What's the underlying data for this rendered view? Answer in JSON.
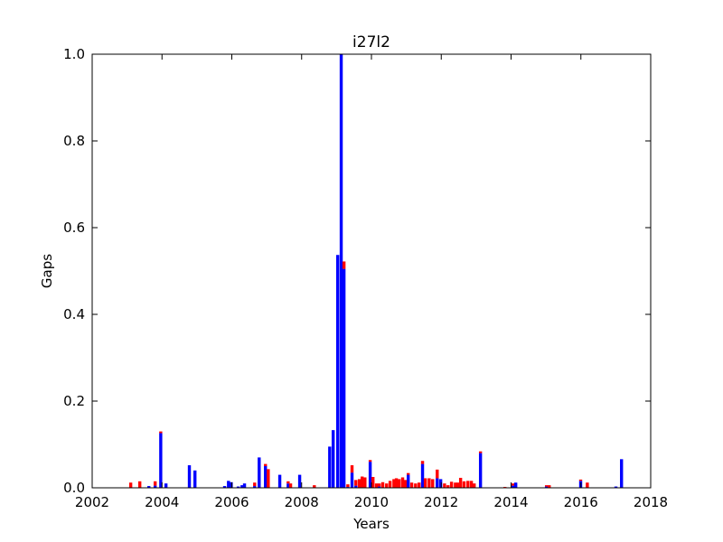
{
  "chart_data": {
    "type": "stacked_bar",
    "title": "i27l2",
    "xlabel": "Years",
    "ylabel": "Gaps",
    "x": [
      2003.06,
      2003.32,
      2003.58,
      2003.76,
      2003.92,
      2004.07,
      2004.74,
      2004.9,
      2005.75,
      2005.86,
      2005.94,
      2006.14,
      2006.25,
      2006.32,
      2006.61,
      2006.74,
      2006.92,
      2007.0,
      2007.33,
      2007.57,
      2007.64,
      2007.9,
      2008.32,
      2008.76,
      2008.86,
      2008.99,
      2009.09,
      2009.17,
      2009.28,
      2009.4,
      2009.51,
      2009.61,
      2009.69,
      2009.77,
      2009.92,
      2010.0,
      2010.1,
      2010.18,
      2010.28,
      2010.39,
      2010.49,
      2010.6,
      2010.67,
      2010.75,
      2010.85,
      2010.93,
      2011.01,
      2011.11,
      2011.22,
      2011.32,
      2011.42,
      2011.5,
      2011.61,
      2011.71,
      2011.84,
      2011.94,
      2012.05,
      2012.15,
      2012.25,
      2012.36,
      2012.43,
      2012.51,
      2012.61,
      2012.72,
      2012.82,
      2012.9,
      2013.08,
      2013.78,
      2014.01,
      2014.09,
      2014.97,
      2015.05,
      2015.95,
      2016.14,
      2016.96,
      2017.12
    ],
    "series": [
      {
        "color": "#0000ff",
        "values": [
          0,
          0,
          0.004,
          0.005,
          0.126,
          0.01,
          0.052,
          0.04,
          0.004,
          0.016,
          0.013,
          0.003,
          0.006,
          0.01,
          0.004,
          0.07,
          0.05,
          0,
          0.03,
          0.01,
          0,
          0.03,
          0,
          0.095,
          0.133,
          0.537,
          1.0,
          0.505,
          0.002,
          0.035,
          0.005,
          0,
          0,
          0,
          0.06,
          0,
          0,
          0.003,
          0,
          0,
          0,
          0,
          0,
          0,
          0,
          0,
          0.03,
          0,
          0,
          0,
          0.055,
          0,
          0,
          0,
          0.022,
          0.02,
          0,
          0,
          0,
          0,
          0,
          0,
          0,
          0,
          0,
          0,
          0.08,
          0,
          0.005,
          0.012,
          0.003,
          0,
          0.016,
          0,
          0.003,
          0.066
        ]
      },
      {
        "color": "#ff0000",
        "values": [
          0.012,
          0.015,
          0,
          0.01,
          0.004,
          0,
          0,
          0,
          0,
          0,
          0,
          0,
          0,
          0,
          0.008,
          0,
          0.005,
          0.043,
          0,
          0.005,
          0.01,
          0,
          0.006,
          0,
          0,
          0,
          0,
          0.017,
          0.006,
          0.017,
          0.013,
          0.02,
          0.026,
          0.024,
          0.004,
          0.025,
          0.01,
          0.007,
          0.013,
          0.01,
          0.016,
          0.02,
          0.022,
          0.02,
          0.024,
          0.018,
          0.004,
          0.012,
          0.01,
          0.012,
          0.007,
          0.022,
          0.022,
          0.02,
          0.02,
          0,
          0.01,
          0.006,
          0.014,
          0.012,
          0.012,
          0.023,
          0.015,
          0.016,
          0.016,
          0.01,
          0.004,
          0.002,
          0.005,
          0,
          0.003,
          0.006,
          0.003,
          0.012,
          0,
          0
        ]
      }
    ],
    "xlim": [
      2002,
      2018
    ],
    "xticks": [
      2002,
      2004,
      2006,
      2008,
      2010,
      2012,
      2014,
      2016,
      2018
    ],
    "ylim": [
      0,
      1
    ],
    "yticks": [
      {
        "value": 0,
        "label": "0.0"
      },
      0.2,
      0.4,
      0.6,
      0.8,
      {
        "value": 1,
        "label": "1.0"
      }
    ]
  }
}
